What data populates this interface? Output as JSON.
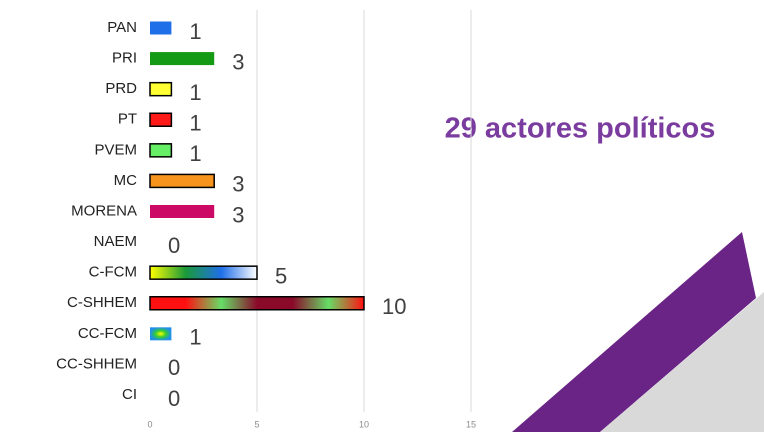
{
  "chart_data": {
    "type": "barh",
    "categories": [
      "PAN",
      "PRI",
      "PRD",
      "PT",
      "PVEM",
      "MC",
      "MORENA",
      "NAEM",
      "C-FCM",
      "C-SHHEM",
      "CC-FCM",
      "CC-SHHEM",
      "CI"
    ],
    "values": [
      1,
      3,
      1,
      1,
      1,
      3,
      3,
      0,
      5,
      10,
      1,
      0,
      0
    ],
    "colors": [
      "#1f6fe8",
      "#149a14",
      "#ffff33",
      "#ff1a1a",
      "#66ee66",
      "#f7941d",
      "#cc0a66",
      "#cccccc",
      [
        "#ffff00",
        "#1a9a3a",
        "#1f6fe8",
        "#ffffff"
      ],
      [
        "#ff1010",
        "#ff1010",
        "#66dd66",
        "#8b0a2a",
        "#8b0a2a",
        "#66dd66",
        "#ff1010"
      ],
      [
        "#ffff00",
        "#33cc33",
        "#1f8fe8"
      ],
      "#cccccc",
      "#cccccc"
    ],
    "edgecolors": [
      null,
      null,
      "#000000",
      "#000000",
      "#000000",
      "#000000",
      null,
      null,
      "#000000",
      "#000000",
      null,
      null,
      null
    ],
    "xlim": [
      0,
      15
    ],
    "xticks": [
      0,
      5,
      10,
      15
    ],
    "grid": true,
    "annotation": "29 actores políticos"
  }
}
